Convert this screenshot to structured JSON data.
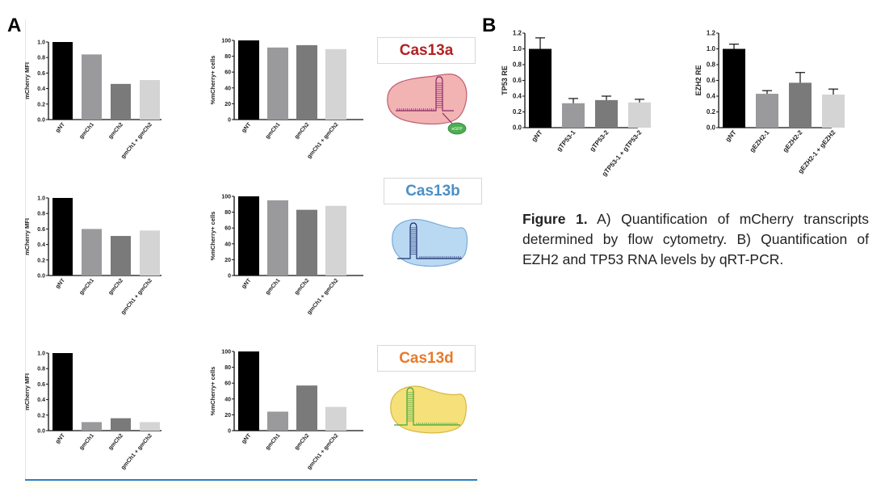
{
  "panels": {
    "A": {
      "letter": "A"
    },
    "B": {
      "letter": "B"
    }
  },
  "cas_labels": [
    {
      "name": "Cas13a",
      "color": "#b22222",
      "fill": "#f2b3b3",
      "stroke": "#c06070",
      "rna": "#8b2a6a"
    },
    {
      "name": "Cas13b",
      "color": "#4a90c6",
      "fill": "#b9d9f2",
      "stroke": "#7aaedb",
      "rna": "#1f2f6e"
    },
    {
      "name": "Cas13d",
      "color": "#e87a2a",
      "fill": "#f5e07a",
      "stroke": "#d9b840",
      "rna": "#3fa83f"
    }
  ],
  "gfp_label": "eGFP",
  "caption": {
    "bold": "Figure 1.",
    "text": " A) Quantification of mCherry transcripts determined by flow cytometry. B) Quantification of EZH2 and TP53 RNA levels by qRT-PCR."
  },
  "bar_colors": [
    "#000000",
    "#9a9a9c",
    "#7a7a7a",
    "#d4d4d4"
  ],
  "chart_data": [
    {
      "id": "A1-mfi",
      "type": "bar",
      "title": "",
      "xlabel": "",
      "ylabel": "mCherry MFI",
      "categories": [
        "gNT",
        "gmCh1",
        "gmCh2",
        "gmCh1 + gmCh2"
      ],
      "values": [
        1.0,
        0.84,
        0.46,
        0.51
      ],
      "ylim": [
        0,
        1.0
      ],
      "yticks": [
        "0.0",
        "0.2",
        "0.4",
        "0.6",
        "0.8",
        "1.0"
      ],
      "grid": false
    },
    {
      "id": "A1-pct",
      "type": "bar",
      "title": "",
      "xlabel": "",
      "ylabel": "%mCherry+ cells",
      "categories": [
        "gNT",
        "gmCh1",
        "gmCh2",
        "gmCh1 + gmCh2"
      ],
      "values": [
        100,
        91,
        94,
        89
      ],
      "ylim": [
        0,
        100
      ],
      "yticks": [
        "0",
        "20",
        "40",
        "60",
        "80",
        "100"
      ],
      "grid": false
    },
    {
      "id": "A2-mfi",
      "type": "bar",
      "title": "",
      "xlabel": "",
      "ylabel": "mCherry MFI",
      "categories": [
        "gNT",
        "gmCh1",
        "gmCh2",
        "gmCh1 + gmCh2"
      ],
      "values": [
        1.0,
        0.6,
        0.51,
        0.58
      ],
      "ylim": [
        0,
        1.0
      ],
      "yticks": [
        "0.0",
        "0.2",
        "0.4",
        "0.6",
        "0.8",
        "1.0"
      ],
      "grid": false
    },
    {
      "id": "A2-pct",
      "type": "bar",
      "title": "",
      "xlabel": "",
      "ylabel": "%mCherry+ cells",
      "categories": [
        "gNT",
        "gmCh1",
        "gmCh2",
        "gmCh1 + gmCh2"
      ],
      "values": [
        100,
        95,
        83,
        88
      ],
      "ylim": [
        0,
        100
      ],
      "yticks": [
        "0",
        "20",
        "40",
        "60",
        "80",
        "100"
      ],
      "grid": false
    },
    {
      "id": "A3-mfi",
      "type": "bar",
      "title": "",
      "xlabel": "",
      "ylabel": "mCherry MFI",
      "categories": [
        "gNT",
        "gmCh1",
        "gmCh2",
        "gmCh1 + gmCh2"
      ],
      "values": [
        1.0,
        0.11,
        0.16,
        0.11
      ],
      "ylim": [
        0,
        1.0
      ],
      "yticks": [
        "0.0",
        "0.2",
        "0.4",
        "0.6",
        "0.8",
        "1.0"
      ],
      "grid": false
    },
    {
      "id": "A3-pct",
      "type": "bar",
      "title": "",
      "xlabel": "",
      "ylabel": "%mCherry+ cells",
      "categories": [
        "gNT",
        "gmCh1",
        "gmCh2",
        "gmCh1 + gmCh2"
      ],
      "values": [
        100,
        24,
        57,
        30
      ],
      "ylim": [
        0,
        100
      ],
      "yticks": [
        "0",
        "20",
        "40",
        "60",
        "80",
        "100"
      ],
      "grid": false
    },
    {
      "id": "B-tp53",
      "type": "bar",
      "title": "",
      "xlabel": "",
      "ylabel": "TP53   RE",
      "categories": [
        "gNT",
        "gTP53-1",
        "gTP53-2",
        "gTP53-1 + gTP53-2"
      ],
      "values": [
        1.0,
        0.31,
        0.35,
        0.32
      ],
      "errors": [
        0.14,
        0.06,
        0.05,
        0.04
      ],
      "ylim": [
        0,
        1.2
      ],
      "yticks": [
        "0.0",
        "0.2",
        "0.4",
        "0.6",
        "0.8",
        "1.0",
        "1.2"
      ],
      "grid": false
    },
    {
      "id": "B-ezh2",
      "type": "bar",
      "title": "",
      "xlabel": "",
      "ylabel": "EZH2   RE",
      "categories": [
        "gNT",
        "gEZH2-1",
        "gEZH2-2",
        "gEZH2-1 + gEZH2"
      ],
      "values": [
        1.0,
        0.43,
        0.57,
        0.42
      ],
      "errors": [
        0.06,
        0.04,
        0.13,
        0.07
      ],
      "ylim": [
        0,
        1.2
      ],
      "yticks": [
        "0.0",
        "0.2",
        "0.4",
        "0.6",
        "0.8",
        "1.0",
        "1.2"
      ],
      "grid": false
    }
  ]
}
